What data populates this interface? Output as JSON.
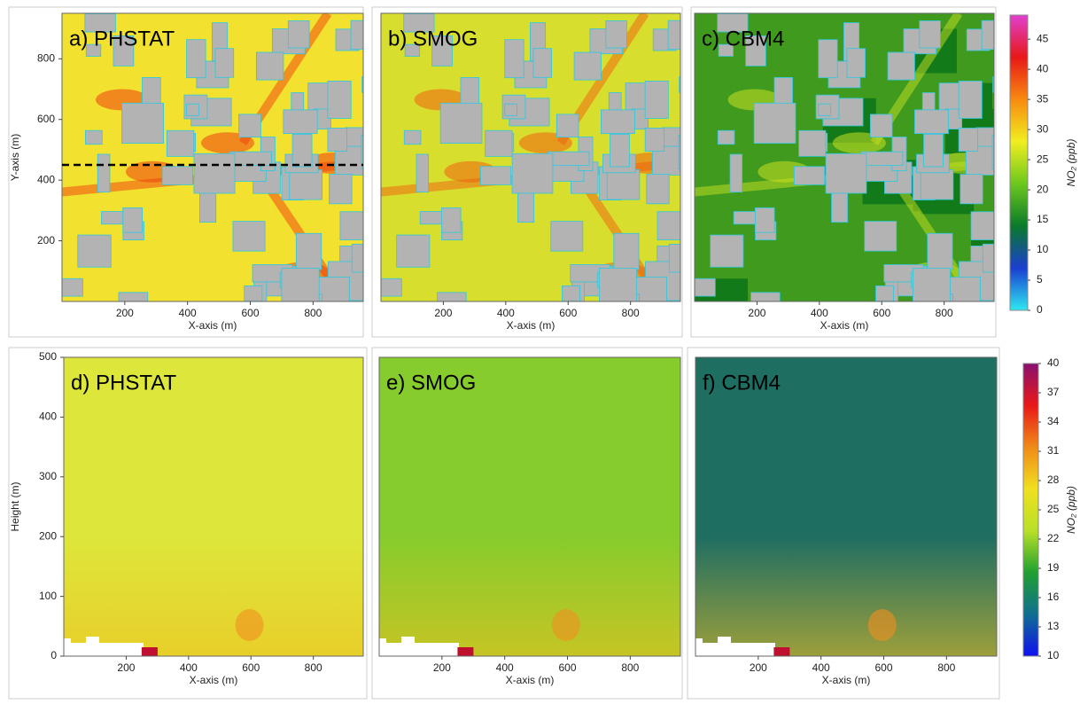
{
  "chart_data": [
    {
      "type": "map",
      "title": "a) PHSTAT",
      "xlabel": "X-axis (m)",
      "ylabel": "Y-axis (m)",
      "xlim": [
        0,
        960
      ],
      "ylim": [
        0,
        950
      ],
      "xticks": [
        200,
        400,
        600,
        800
      ],
      "yticks": [
        200,
        400,
        600,
        800
      ],
      "color": "#f2e12e",
      "hline": 450
    },
    {
      "type": "map",
      "title": "b) SMOG",
      "xlabel": "X-axis (m)",
      "xlim": [
        0,
        960
      ],
      "ylim": [
        0,
        950
      ],
      "xticks": [
        200,
        400,
        600,
        800
      ],
      "color": "#d8de2e"
    },
    {
      "type": "map",
      "title": "c) CBM4",
      "xlabel": "X-axis (m)",
      "xlim": [
        0,
        960
      ],
      "ylim": [
        0,
        950
      ],
      "xticks": [
        200,
        400,
        600,
        800
      ],
      "color": "#3f9a1e"
    },
    {
      "type": "colorbar",
      "label": "NO₂ (ppb)",
      "ylim": [
        0,
        49
      ],
      "yticks": [
        0,
        5,
        10,
        15,
        20,
        25,
        30,
        35,
        40,
        45
      ],
      "colors": [
        "#2ee8f0",
        "#1a3fd0",
        "#0a7a2a",
        "#6cc81e",
        "#f0ee20",
        "#f88a10",
        "#e81818",
        "#e040d0"
      ]
    },
    {
      "type": "section",
      "title": "d) PHSTAT",
      "xlabel": "X-axis (m)",
      "ylabel": "Height (m)",
      "xlim": [
        0,
        960
      ],
      "ylim": [
        0,
        500
      ],
      "xticks": [
        200,
        400,
        600,
        800
      ],
      "yticks": [
        0,
        100,
        200,
        300,
        400,
        500
      ],
      "color": "#dde63a"
    },
    {
      "type": "section",
      "title": "e) SMOG",
      "xlabel": "X-axis (m)",
      "xlim": [
        0,
        960
      ],
      "ylim": [
        0,
        500
      ],
      "xticks": [
        200,
        400,
        600,
        800
      ],
      "color": "#86cc2c"
    },
    {
      "type": "section",
      "title": "f) CBM4",
      "xlabel": "X-axis (m)",
      "xlim": [
        0,
        960
      ],
      "ylim": [
        0,
        500
      ],
      "xticks": [
        200,
        400,
        600,
        800
      ],
      "color": "#1f6e62"
    },
    {
      "type": "colorbar",
      "label": "NO₂ (ppb)",
      "ylim": [
        10,
        40
      ],
      "yticks": [
        10,
        13,
        16,
        19,
        22,
        25,
        28,
        31,
        34,
        37,
        40
      ],
      "colors": [
        "#1010f0",
        "#106f90",
        "#20a030",
        "#b8e028",
        "#f0e020",
        "#f08a18",
        "#e81818",
        "#8a1070"
      ]
    }
  ]
}
